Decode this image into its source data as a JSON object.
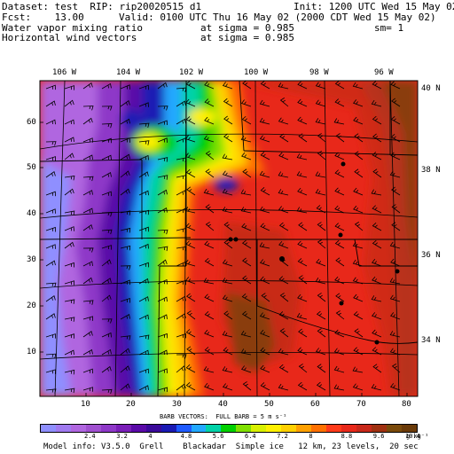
{
  "header": {
    "dataset": "Dataset: test  RIP: rip20020515 d1",
    "init": "Init: 1200 UTC Wed 15 May 02",
    "fcst": "Fcst:    13.00",
    "valid": "Valid: 0100 UTC Thu 16 May 02 (2000 CDT Wed 15 May 02)",
    "field1": "Water vapor mixing ratio",
    "field1_level": "at sigma = 0.985",
    "field1_smooth": "sm= 1",
    "field2": "Horizontal wind vectors",
    "field2_level": "at sigma = 0.985"
  },
  "map": {
    "top_lon_labels": [
      "106 W",
      "104 W",
      "102 W",
      "100 W",
      "98 W",
      "96 W"
    ],
    "right_lat_labels": [
      "40 N",
      "38 N",
      "36 N",
      "34 N"
    ],
    "left_grid_labels": [
      "60",
      "50",
      "40",
      "30",
      "20",
      "10"
    ],
    "bottom_grid_labels": [
      "10",
      "20",
      "30",
      "40",
      "50",
      "60",
      "70",
      "80"
    ]
  },
  "legend": {
    "barb_caption": "BARB VECTORS:  FULL BARB = 5 m s⁻¹",
    "tick_labels": [
      "2.4",
      "3.2",
      "4",
      "4.8",
      "5.6",
      "6.4",
      "7.2",
      "8",
      "8.8",
      "9.6",
      "10.4"
    ],
    "unit": "g kg⁻¹",
    "colors": [
      "#8f8fff",
      "#a07af0",
      "#b066e0",
      "#a050d0",
      "#8e38c8",
      "#7a1eb8",
      "#5a0aa8",
      "#3a0a9a",
      "#1a1ab4",
      "#1e5aff",
      "#22a8ff",
      "#00d2a8",
      "#00d000",
      "#80e000",
      "#d8f000",
      "#fff000",
      "#ffd000",
      "#ffa000",
      "#ff7000",
      "#ff3a1a",
      "#e8281a",
      "#c8281a",
      "#a03010",
      "#7a4a0a",
      "#6a3a08"
    ]
  },
  "footer": {
    "model_info": "Model info: V3.5.0  Grell    Blackadar  Simple ice   12 km, 23 levels,  20 sec"
  }
}
